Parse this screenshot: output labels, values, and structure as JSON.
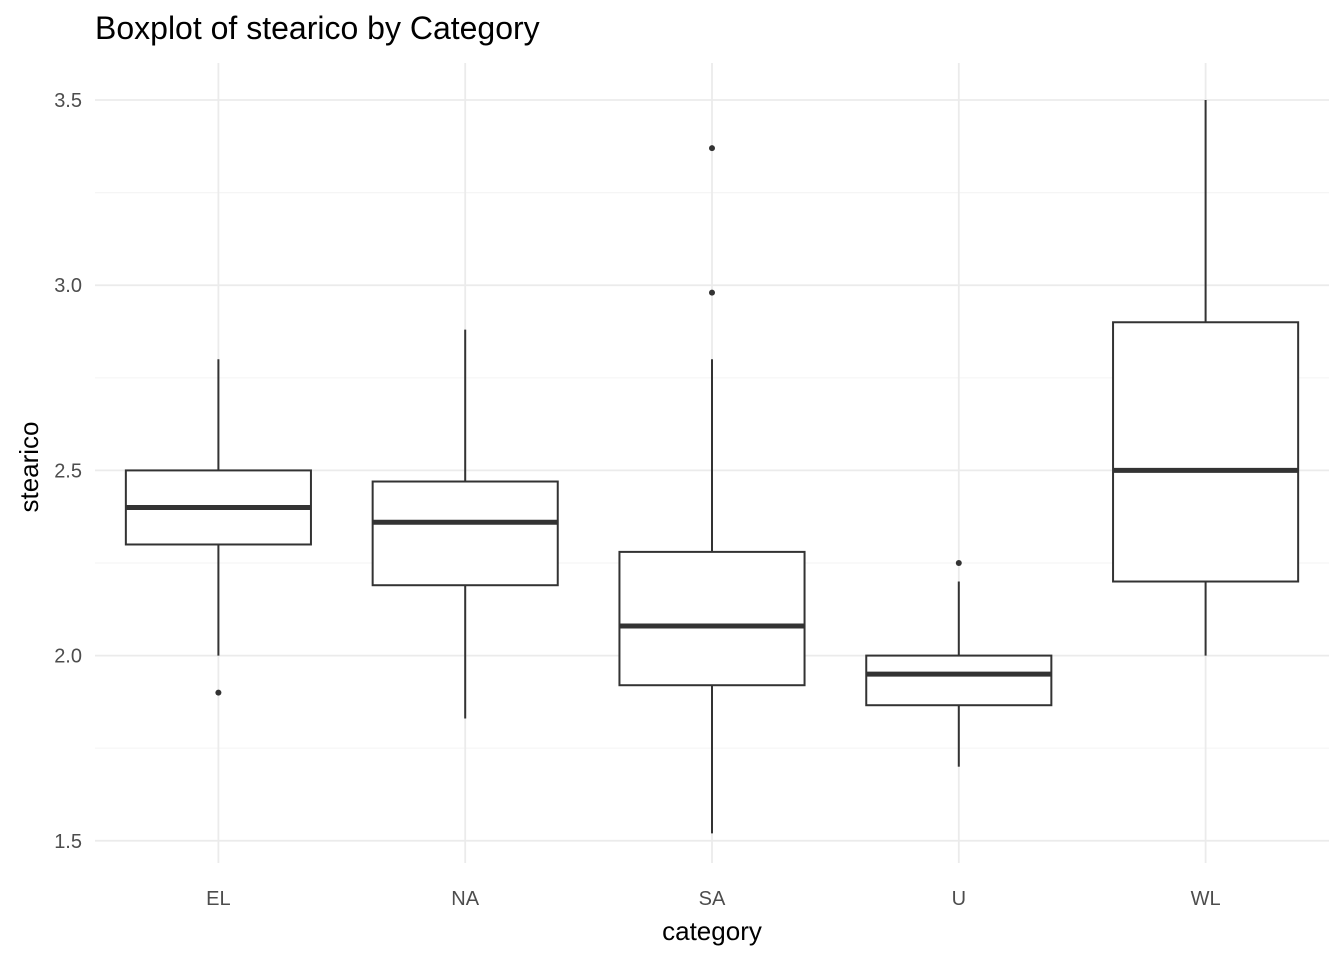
{
  "chart_data": {
    "type": "boxplot",
    "title": "Boxplot of stearico by Category",
    "xlabel": "category",
    "ylabel": "stearico",
    "categories": [
      "EL",
      "NA",
      "SA",
      "U",
      "WL"
    ],
    "y_ticks": [
      "1.5",
      "2.0",
      "2.5",
      "3.0",
      "3.5"
    ],
    "ylim": [
      1.44,
      3.6
    ],
    "grid": true,
    "colors": {
      "box": "#333333",
      "grid_major": "#ebebeb",
      "grid_minor": "#f5f5f5",
      "background": "#ffffff"
    },
    "boxes": [
      {
        "category": "EL",
        "whisker_low": 2.0,
        "q1": 2.3,
        "median": 2.4,
        "q3": 2.5,
        "whisker_high": 2.8,
        "outliers": [
          1.9
        ]
      },
      {
        "category": "NA",
        "whisker_low": 1.83,
        "q1": 2.19,
        "median": 2.36,
        "q3": 2.47,
        "whisker_high": 2.88,
        "outliers": []
      },
      {
        "category": "SA",
        "whisker_low": 1.52,
        "q1": 1.92,
        "median": 2.08,
        "q3": 2.28,
        "whisker_high": 2.8,
        "outliers": [
          2.98,
          3.37
        ]
      },
      {
        "category": "U",
        "whisker_low": 1.7,
        "q1": 1.866,
        "median": 1.95,
        "q3": 2.0,
        "whisker_high": 2.2,
        "outliers": [
          2.25
        ]
      },
      {
        "category": "WL",
        "whisker_low": 2.0,
        "q1": 2.2,
        "median": 2.5,
        "q3": 2.9,
        "whisker_high": 3.5,
        "outliers": []
      }
    ]
  }
}
